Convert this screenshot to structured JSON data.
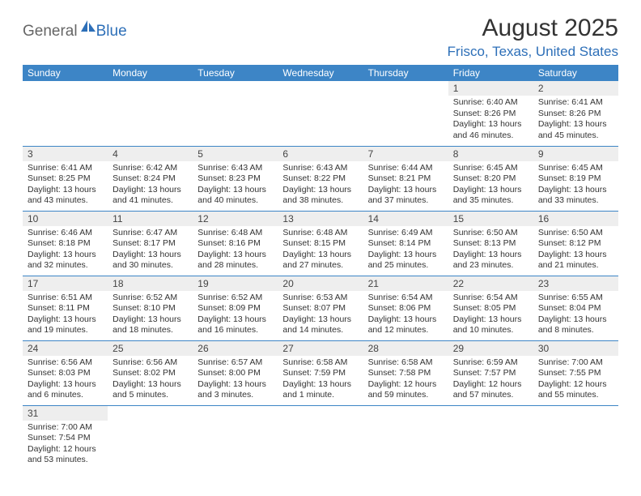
{
  "logo": {
    "part1": "General",
    "part2": "Blue"
  },
  "title": "August 2025",
  "location": "Frisco, Texas, United States",
  "colors": {
    "header_bg": "#3d85c6",
    "header_text": "#ffffff",
    "daynum_bg": "#eeeeee",
    "border": "#3d85c6",
    "location_color": "#2d6fb8"
  },
  "weekdays": [
    "Sunday",
    "Monday",
    "Tuesday",
    "Wednesday",
    "Thursday",
    "Friday",
    "Saturday"
  ],
  "weeks": [
    [
      null,
      null,
      null,
      null,
      null,
      {
        "n": "1",
        "sunrise": "Sunrise: 6:40 AM",
        "sunset": "Sunset: 8:26 PM",
        "day1": "Daylight: 13 hours",
        "day2": "and 46 minutes."
      },
      {
        "n": "2",
        "sunrise": "Sunrise: 6:41 AM",
        "sunset": "Sunset: 8:26 PM",
        "day1": "Daylight: 13 hours",
        "day2": "and 45 minutes."
      }
    ],
    [
      {
        "n": "3",
        "sunrise": "Sunrise: 6:41 AM",
        "sunset": "Sunset: 8:25 PM",
        "day1": "Daylight: 13 hours",
        "day2": "and 43 minutes."
      },
      {
        "n": "4",
        "sunrise": "Sunrise: 6:42 AM",
        "sunset": "Sunset: 8:24 PM",
        "day1": "Daylight: 13 hours",
        "day2": "and 41 minutes."
      },
      {
        "n": "5",
        "sunrise": "Sunrise: 6:43 AM",
        "sunset": "Sunset: 8:23 PM",
        "day1": "Daylight: 13 hours",
        "day2": "and 40 minutes."
      },
      {
        "n": "6",
        "sunrise": "Sunrise: 6:43 AM",
        "sunset": "Sunset: 8:22 PM",
        "day1": "Daylight: 13 hours",
        "day2": "and 38 minutes."
      },
      {
        "n": "7",
        "sunrise": "Sunrise: 6:44 AM",
        "sunset": "Sunset: 8:21 PM",
        "day1": "Daylight: 13 hours",
        "day2": "and 37 minutes."
      },
      {
        "n": "8",
        "sunrise": "Sunrise: 6:45 AM",
        "sunset": "Sunset: 8:20 PM",
        "day1": "Daylight: 13 hours",
        "day2": "and 35 minutes."
      },
      {
        "n": "9",
        "sunrise": "Sunrise: 6:45 AM",
        "sunset": "Sunset: 8:19 PM",
        "day1": "Daylight: 13 hours",
        "day2": "and 33 minutes."
      }
    ],
    [
      {
        "n": "10",
        "sunrise": "Sunrise: 6:46 AM",
        "sunset": "Sunset: 8:18 PM",
        "day1": "Daylight: 13 hours",
        "day2": "and 32 minutes."
      },
      {
        "n": "11",
        "sunrise": "Sunrise: 6:47 AM",
        "sunset": "Sunset: 8:17 PM",
        "day1": "Daylight: 13 hours",
        "day2": "and 30 minutes."
      },
      {
        "n": "12",
        "sunrise": "Sunrise: 6:48 AM",
        "sunset": "Sunset: 8:16 PM",
        "day1": "Daylight: 13 hours",
        "day2": "and 28 minutes."
      },
      {
        "n": "13",
        "sunrise": "Sunrise: 6:48 AM",
        "sunset": "Sunset: 8:15 PM",
        "day1": "Daylight: 13 hours",
        "day2": "and 27 minutes."
      },
      {
        "n": "14",
        "sunrise": "Sunrise: 6:49 AM",
        "sunset": "Sunset: 8:14 PM",
        "day1": "Daylight: 13 hours",
        "day2": "and 25 minutes."
      },
      {
        "n": "15",
        "sunrise": "Sunrise: 6:50 AM",
        "sunset": "Sunset: 8:13 PM",
        "day1": "Daylight: 13 hours",
        "day2": "and 23 minutes."
      },
      {
        "n": "16",
        "sunrise": "Sunrise: 6:50 AM",
        "sunset": "Sunset: 8:12 PM",
        "day1": "Daylight: 13 hours",
        "day2": "and 21 minutes."
      }
    ],
    [
      {
        "n": "17",
        "sunrise": "Sunrise: 6:51 AM",
        "sunset": "Sunset: 8:11 PM",
        "day1": "Daylight: 13 hours",
        "day2": "and 19 minutes."
      },
      {
        "n": "18",
        "sunrise": "Sunrise: 6:52 AM",
        "sunset": "Sunset: 8:10 PM",
        "day1": "Daylight: 13 hours",
        "day2": "and 18 minutes."
      },
      {
        "n": "19",
        "sunrise": "Sunrise: 6:52 AM",
        "sunset": "Sunset: 8:09 PM",
        "day1": "Daylight: 13 hours",
        "day2": "and 16 minutes."
      },
      {
        "n": "20",
        "sunrise": "Sunrise: 6:53 AM",
        "sunset": "Sunset: 8:07 PM",
        "day1": "Daylight: 13 hours",
        "day2": "and 14 minutes."
      },
      {
        "n": "21",
        "sunrise": "Sunrise: 6:54 AM",
        "sunset": "Sunset: 8:06 PM",
        "day1": "Daylight: 13 hours",
        "day2": "and 12 minutes."
      },
      {
        "n": "22",
        "sunrise": "Sunrise: 6:54 AM",
        "sunset": "Sunset: 8:05 PM",
        "day1": "Daylight: 13 hours",
        "day2": "and 10 minutes."
      },
      {
        "n": "23",
        "sunrise": "Sunrise: 6:55 AM",
        "sunset": "Sunset: 8:04 PM",
        "day1": "Daylight: 13 hours",
        "day2": "and 8 minutes."
      }
    ],
    [
      {
        "n": "24",
        "sunrise": "Sunrise: 6:56 AM",
        "sunset": "Sunset: 8:03 PM",
        "day1": "Daylight: 13 hours",
        "day2": "and 6 minutes."
      },
      {
        "n": "25",
        "sunrise": "Sunrise: 6:56 AM",
        "sunset": "Sunset: 8:02 PM",
        "day1": "Daylight: 13 hours",
        "day2": "and 5 minutes."
      },
      {
        "n": "26",
        "sunrise": "Sunrise: 6:57 AM",
        "sunset": "Sunset: 8:00 PM",
        "day1": "Daylight: 13 hours",
        "day2": "and 3 minutes."
      },
      {
        "n": "27",
        "sunrise": "Sunrise: 6:58 AM",
        "sunset": "Sunset: 7:59 PM",
        "day1": "Daylight: 13 hours",
        "day2": "and 1 minute."
      },
      {
        "n": "28",
        "sunrise": "Sunrise: 6:58 AM",
        "sunset": "Sunset: 7:58 PM",
        "day1": "Daylight: 12 hours",
        "day2": "and 59 minutes."
      },
      {
        "n": "29",
        "sunrise": "Sunrise: 6:59 AM",
        "sunset": "Sunset: 7:57 PM",
        "day1": "Daylight: 12 hours",
        "day2": "and 57 minutes."
      },
      {
        "n": "30",
        "sunrise": "Sunrise: 7:00 AM",
        "sunset": "Sunset: 7:55 PM",
        "day1": "Daylight: 12 hours",
        "day2": "and 55 minutes."
      }
    ],
    [
      {
        "n": "31",
        "sunrise": "Sunrise: 7:00 AM",
        "sunset": "Sunset: 7:54 PM",
        "day1": "Daylight: 12 hours",
        "day2": "and 53 minutes."
      },
      null,
      null,
      null,
      null,
      null,
      null
    ]
  ]
}
